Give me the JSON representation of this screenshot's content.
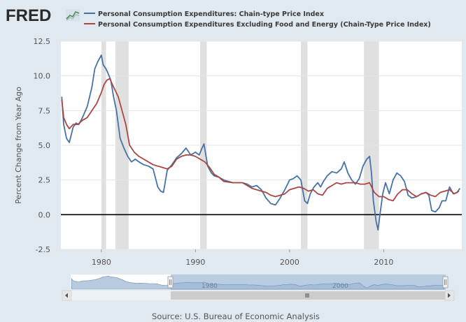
{
  "logo": {
    "text": "FRED"
  },
  "chart_data": {
    "type": "line",
    "title": "",
    "xlabel": "",
    "ylabel": "Percent Change from Year Ago",
    "xlim": [
      1975.7,
      2018.3
    ],
    "ylim": [
      -2.5,
      12.5
    ],
    "x_ticks": [
      1980,
      1990,
      2000,
      2010
    ],
    "x_tick_labels": [
      "1980",
      "1990",
      "2000",
      "2010"
    ],
    "y_ticks": [
      -2.5,
      0.0,
      2.5,
      5.0,
      7.5,
      10.0,
      12.5
    ],
    "y_tick_labels": [
      "-2.5",
      "0.0",
      "2.5",
      "5.0",
      "7.5",
      "10.0",
      "12.5"
    ],
    "zero_line": 0,
    "recessions": [
      [
        1980.0,
        1980.5
      ],
      [
        1981.5,
        1982.9
      ],
      [
        1990.5,
        1991.2
      ],
      [
        2001.2,
        2001.9
      ],
      [
        2007.9,
        2009.5
      ]
    ],
    "series": [
      {
        "name": "Personal Consumption Expenditures: Chain-type Price Index",
        "color": "#4572a7",
        "x": [
          1975.8,
          1976.0,
          1976.3,
          1976.6,
          1977.0,
          1977.3,
          1977.6,
          1978.0,
          1978.5,
          1979.0,
          1979.3,
          1979.6,
          1980.0,
          1980.2,
          1980.5,
          1980.7,
          1981.0,
          1981.3,
          1981.6,
          1982.0,
          1982.4,
          1982.8,
          1983.2,
          1983.6,
          1984.0,
          1984.5,
          1985.0,
          1985.5,
          1986.0,
          1986.3,
          1986.6,
          1987.0,
          1987.5,
          1988.0,
          1988.5,
          1989.0,
          1989.5,
          1990.0,
          1990.4,
          1990.7,
          1990.9,
          1991.3,
          1991.7,
          1992.0,
          1992.5,
          1993.0,
          1993.5,
          1994.0,
          1995.0,
          1995.5,
          1996.0,
          1996.5,
          1997.0,
          1997.5,
          1998.0,
          1998.5,
          1999.0,
          1999.5,
          2000.0,
          2000.4,
          2000.8,
          2001.2,
          2001.6,
          2001.9,
          2002.2,
          2002.6,
          2003.0,
          2003.3,
          2003.6,
          2004.0,
          2004.5,
          2005.0,
          2005.5,
          2005.8,
          2006.2,
          2006.6,
          2007.0,
          2007.4,
          2007.8,
          2008.2,
          2008.5,
          2008.7,
          2008.9,
          2009.2,
          2009.4,
          2009.6,
          2009.9,
          2010.2,
          2010.6,
          2011.0,
          2011.4,
          2011.8,
          2012.2,
          2012.6,
          2013.0,
          2013.5,
          2014.0,
          2014.5,
          2014.8,
          2015.1,
          2015.5,
          2015.9,
          2016.2,
          2016.6,
          2017.0,
          2017.4,
          2017.8,
          2018.1
        ],
        "values": [
          8.5,
          6.5,
          5.5,
          5.2,
          6.3,
          6.6,
          6.5,
          7.0,
          7.8,
          9.2,
          10.5,
          11.0,
          11.5,
          10.8,
          10.5,
          10.2,
          9.7,
          8.5,
          7.5,
          5.5,
          4.8,
          4.2,
          3.8,
          4.0,
          3.8,
          3.6,
          3.5,
          3.3,
          2.0,
          1.7,
          1.6,
          3.2,
          3.6,
          4.1,
          4.4,
          4.8,
          4.3,
          4.5,
          4.3,
          4.8,
          5.1,
          3.5,
          3.0,
          2.8,
          2.7,
          2.5,
          2.4,
          2.3,
          2.3,
          2.2,
          2.0,
          2.1,
          1.8,
          1.2,
          0.8,
          0.7,
          1.2,
          1.8,
          2.5,
          2.6,
          2.8,
          2.5,
          1.0,
          0.8,
          1.5,
          2.0,
          2.3,
          2.0,
          2.4,
          2.8,
          3.1,
          3.0,
          3.3,
          3.8,
          3.0,
          2.5,
          2.2,
          2.6,
          3.5,
          4.0,
          4.2,
          3.0,
          1.0,
          -0.5,
          -1.1,
          0.0,
          1.5,
          2.3,
          1.5,
          2.5,
          3.0,
          2.8,
          2.4,
          1.4,
          1.2,
          1.3,
          1.5,
          1.6,
          1.4,
          0.3,
          0.2,
          0.5,
          1.0,
          1.0,
          2.0,
          1.5,
          1.6,
          1.9
        ]
      },
      {
        "name": "Personal Consumption Expenditures Excluding Food and Energy (Chain-Type Price Index)",
        "color": "#aa4643",
        "x": [
          1975.8,
          1976.0,
          1976.3,
          1976.6,
          1977.0,
          1977.5,
          1978.0,
          1978.5,
          1979.0,
          1979.5,
          1980.0,
          1980.3,
          1980.6,
          1980.9,
          1981.3,
          1981.8,
          1982.2,
          1982.6,
          1983.0,
          1983.5,
          1984.0,
          1984.5,
          1985.0,
          1985.5,
          1986.0,
          1986.5,
          1987.0,
          1987.5,
          1988.0,
          1988.5,
          1989.0,
          1989.5,
          1990.0,
          1990.5,
          1991.0,
          1991.5,
          1992.0,
          1992.5,
          1993.0,
          1994.0,
          1995.0,
          1996.0,
          1997.0,
          1997.5,
          1998.0,
          1998.5,
          1999.0,
          1999.5,
          2000.0,
          2000.5,
          2001.0,
          2001.5,
          2002.0,
          2002.5,
          2003.0,
          2003.5,
          2004.0,
          2004.5,
          2005.0,
          2005.5,
          2006.0,
          2006.5,
          2007.0,
          2007.5,
          2008.0,
          2008.5,
          2009.0,
          2009.5,
          2010.0,
          2010.5,
          2011.0,
          2011.5,
          2012.0,
          2012.5,
          2013.0,
          2013.5,
          2014.0,
          2014.5,
          2015.0,
          2015.5,
          2016.0,
          2016.5,
          2017.0,
          2017.5,
          2018.0
        ],
        "values": [
          8.3,
          7.0,
          6.5,
          6.2,
          6.5,
          6.5,
          6.8,
          7.0,
          7.5,
          8.0,
          8.8,
          9.4,
          9.7,
          9.8,
          9.2,
          8.5,
          7.5,
          6.5,
          5.0,
          4.5,
          4.2,
          4.0,
          3.8,
          3.6,
          3.5,
          3.4,
          3.3,
          3.5,
          4.0,
          4.2,
          4.3,
          4.3,
          4.2,
          4.0,
          3.8,
          3.4,
          2.9,
          2.7,
          2.4,
          2.3,
          2.3,
          1.9,
          1.7,
          1.6,
          1.4,
          1.3,
          1.4,
          1.5,
          1.8,
          1.9,
          2.0,
          1.9,
          1.7,
          1.8,
          1.5,
          1.4,
          1.9,
          2.1,
          2.3,
          2.2,
          2.3,
          2.3,
          2.3,
          2.2,
          2.2,
          2.3,
          1.6,
          1.3,
          1.3,
          1.1,
          1.0,
          1.5,
          1.8,
          1.8,
          1.5,
          1.3,
          1.5,
          1.6,
          1.4,
          1.3,
          1.6,
          1.7,
          1.8,
          1.5,
          1.7
        ]
      }
    ]
  },
  "navigator": {
    "labels": [
      "1980",
      "2000"
    ]
  },
  "source": "Source: U.S. Bureau of Economic Analysis"
}
